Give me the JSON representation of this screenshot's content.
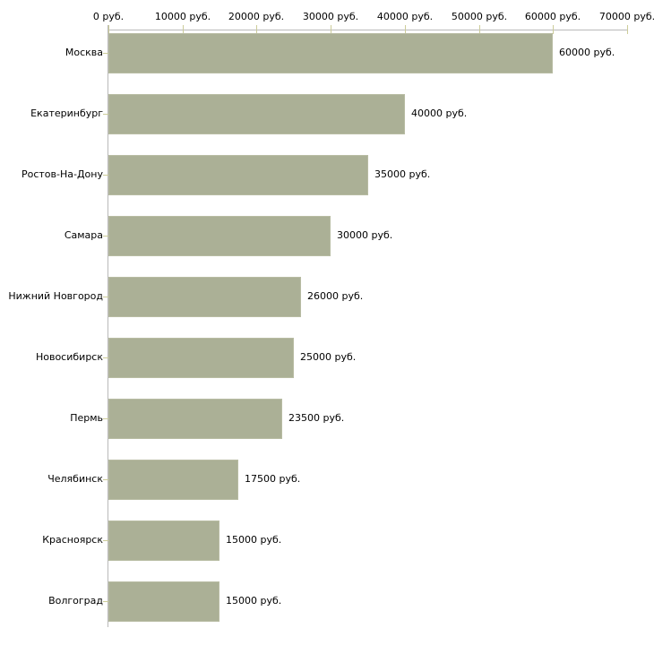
{
  "chart_data": {
    "type": "bar",
    "orientation": "horizontal",
    "title": "",
    "xlabel": "",
    "ylabel": "",
    "unit": "руб.",
    "categories": [
      "Москва",
      "Екатеринбург",
      "Ростов-На-Дону",
      "Самара",
      "Нижний Новгород",
      "Новосибирск",
      "Пермь",
      "Челябинск",
      "Красноярск",
      "Волгоград"
    ],
    "values": [
      60000,
      40000,
      35000,
      30000,
      26000,
      25000,
      23500,
      17500,
      15000,
      15000
    ],
    "value_labels": [
      "60000 руб.",
      "40000 руб.",
      "35000 руб.",
      "30000 руб.",
      "26000 руб.",
      "25000 руб.",
      "23500 руб.",
      "17500 руб.",
      "15000 руб.",
      "15000 руб."
    ],
    "x_ticks": [
      0,
      10000,
      20000,
      30000,
      40000,
      50000,
      60000,
      70000
    ],
    "x_tick_labels": [
      "0 руб.",
      "10000 руб.",
      "20000 руб.",
      "30000 руб.",
      "40000 руб.",
      "50000 руб.",
      "60000 руб.",
      "70000 руб."
    ],
    "xlim": [
      0,
      70000
    ],
    "grid": false,
    "legend": null,
    "colors": {
      "bar_fill": "#abb096",
      "bar_border": "#b8bca3",
      "axis_line": "#b9b9b9",
      "tick_mark": "#cccc99",
      "text": "#000000",
      "background": "#ffffff"
    }
  }
}
